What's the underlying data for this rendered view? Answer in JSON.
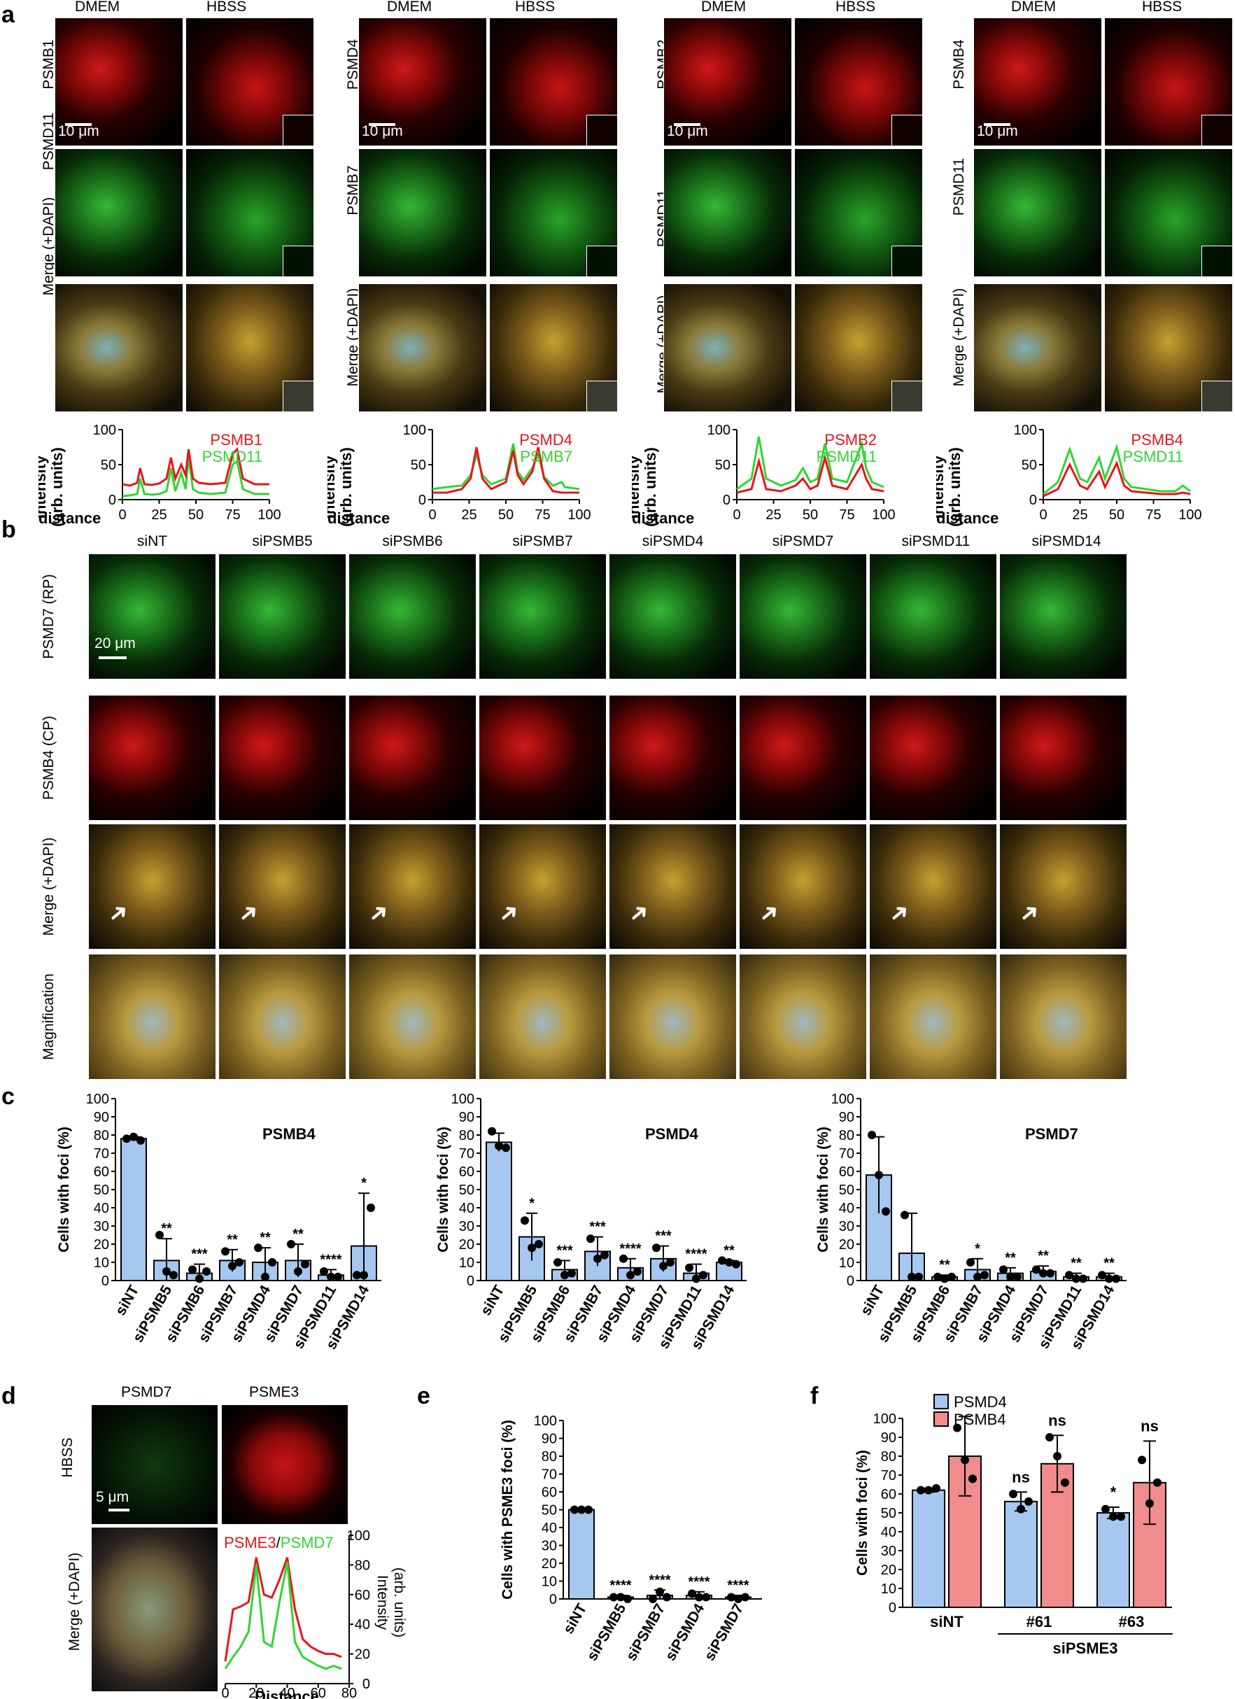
{
  "panel_letters": {
    "a": "a",
    "b": "b",
    "c": "c",
    "d": "d",
    "e": "e",
    "f": "f"
  },
  "panel_a": {
    "col_dmem": "DMEM",
    "col_hbss": "HBSS",
    "merge_label": "Merge (+DAPI)",
    "scale": "10 μm",
    "groups": [
      {
        "top": "PSMB1",
        "mid": "PSMD11"
      },
      {
        "top": "PSMD4",
        "mid": "PSMB7"
      },
      {
        "top": "PSMB2",
        "mid": "PSMD11"
      },
      {
        "top": "PSMB4",
        "mid": "PSMD11"
      }
    ],
    "profile_ylabel_1": "Intensity",
    "profile_ylabel_2": "(arb. units)",
    "profile_xlabel": "distance"
  },
  "panel_b": {
    "columns": [
      "siNT",
      "siPSMB5",
      "siPSMB6",
      "siPSMB7",
      "siPSMD4",
      "siPSMD7",
      "siPSMD11",
      "siPSMD14"
    ],
    "rows": [
      "PSMD7 (RP)",
      "PSMB4 (CP)",
      "Merge (+DAPI)",
      "Magnification"
    ],
    "scale": "20 μm",
    "arrow_glyph": "➜"
  },
  "panel_d": {
    "col1": "PSMD7",
    "col2": "PSME3",
    "row1": "HBSS",
    "row2": "Merge (+DAPI)",
    "scale": "5 μm",
    "legend_red": "PSME3",
    "legend_sep": "/",
    "legend_green": "PSMD7",
    "ylabel_1": "Intensity",
    "ylabel_2": "(arb. units)",
    "xlabel": "Distance"
  },
  "panel_f": {
    "group_label": "siPSME3"
  },
  "chart_data": [
    {
      "type": "line",
      "panel": "a1",
      "x": [
        0,
        5,
        10,
        12,
        15,
        20,
        25,
        30,
        33,
        36,
        40,
        43,
        45,
        48,
        52,
        60,
        70,
        75,
        78,
        82,
        90,
        100
      ],
      "series": [
        {
          "name": "PSMB1",
          "color": "#e8141c",
          "values": [
            22,
            20,
            24,
            45,
            22,
            21,
            23,
            30,
            60,
            30,
            50,
            35,
            72,
            30,
            24,
            22,
            24,
            65,
            72,
            30,
            22,
            22
          ]
        },
        {
          "name": "PSMD11",
          "color": "#2fd62f",
          "values": [
            5,
            6,
            8,
            30,
            8,
            7,
            8,
            12,
            45,
            12,
            38,
            15,
            60,
            15,
            10,
            8,
            10,
            50,
            55,
            15,
            8,
            8
          ]
        }
      ],
      "ylim": [
        0,
        100
      ],
      "xlim": [
        0,
        100
      ],
      "xticks": [
        0,
        25,
        50,
        75,
        100
      ],
      "yticks": [
        0,
        50,
        100
      ]
    },
    {
      "type": "line",
      "panel": "a2",
      "x": [
        0,
        10,
        20,
        26,
        30,
        34,
        40,
        50,
        55,
        58,
        62,
        68,
        72,
        76,
        82,
        88,
        90,
        100
      ],
      "series": [
        {
          "name": "PSMD4",
          "color": "#e8141c",
          "values": [
            10,
            10,
            15,
            30,
            75,
            30,
            15,
            25,
            70,
            35,
            22,
            40,
            75,
            30,
            12,
            10,
            10,
            10
          ]
        },
        {
          "name": "PSMB7",
          "color": "#2fd62f",
          "values": [
            15,
            18,
            20,
            35,
            65,
            35,
            22,
            30,
            80,
            40,
            28,
            45,
            65,
            32,
            20,
            25,
            18,
            15
          ]
        }
      ],
      "ylim": [
        0,
        100
      ],
      "xlim": [
        0,
        100
      ],
      "xticks": [
        0,
        25,
        50,
        75,
        100
      ],
      "yticks": [
        0,
        50,
        100
      ]
    },
    {
      "type": "line",
      "panel": "a3",
      "x": [
        0,
        10,
        15,
        20,
        30,
        40,
        45,
        50,
        55,
        60,
        65,
        75,
        85,
        88,
        92,
        100
      ],
      "series": [
        {
          "name": "PSMB2",
          "color": "#e8141c",
          "values": [
            10,
            15,
            55,
            15,
            12,
            20,
            30,
            15,
            20,
            60,
            20,
            15,
            50,
            30,
            15,
            12
          ]
        },
        {
          "name": "PSMD11",
          "color": "#2fd62f",
          "values": [
            15,
            30,
            90,
            30,
            20,
            28,
            45,
            25,
            30,
            80,
            30,
            25,
            80,
            45,
            25,
            18
          ]
        }
      ],
      "ylim": [
        0,
        100
      ],
      "xlim": [
        0,
        100
      ],
      "xticks": [
        0,
        25,
        50,
        75,
        100
      ],
      "yticks": [
        0,
        50,
        100
      ]
    },
    {
      "type": "line",
      "panel": "a4",
      "x": [
        0,
        10,
        18,
        25,
        30,
        38,
        42,
        50,
        55,
        60,
        70,
        80,
        90,
        95,
        100
      ],
      "series": [
        {
          "name": "PSMB4",
          "color": "#e8141c",
          "values": [
            5,
            15,
            50,
            20,
            15,
            40,
            18,
            52,
            20,
            12,
            10,
            8,
            8,
            10,
            8
          ]
        },
        {
          "name": "PSMD11",
          "color": "#2fd62f",
          "values": [
            8,
            25,
            72,
            30,
            25,
            60,
            30,
            75,
            30,
            18,
            15,
            12,
            12,
            20,
            12
          ]
        }
      ],
      "ylim": [
        0,
        100
      ],
      "xlim": [
        0,
        100
      ],
      "xticks": [
        0,
        25,
        50,
        75,
        100
      ],
      "yticks": [
        0,
        50,
        100
      ]
    },
    {
      "type": "bar",
      "panel": "c1",
      "title": "PSMB4",
      "ylabel": "Cells with foci (%)",
      "ylim": [
        0,
        100
      ],
      "yticks": [
        0,
        10,
        20,
        30,
        40,
        50,
        60,
        70,
        80,
        90,
        100
      ],
      "categories": [
        "siNT",
        "siPSMB5",
        "siPSMB6",
        "siPSMB7",
        "siPSMD4",
        "siPSMD7",
        "siPSMD11",
        "siPSMD14"
      ],
      "values": [
        78,
        11,
        4,
        11,
        10,
        11,
        3,
        19
      ],
      "errors": [
        1,
        12,
        5,
        6,
        8,
        9,
        3,
        29
      ],
      "points": [
        [
          78,
          79,
          77
        ],
        [
          25,
          5,
          3
        ],
        [
          6,
          1,
          5
        ],
        [
          16,
          8,
          10
        ],
        [
          18,
          2,
          10
        ],
        [
          20,
          5,
          9
        ],
        [
          5,
          2,
          2
        ],
        [
          3,
          3,
          40
        ]
      ],
      "significance": [
        "",
        "**",
        "***",
        "**",
        "**",
        "**",
        "****",
        "*"
      ]
    },
    {
      "type": "bar",
      "panel": "c2",
      "title": "PSMD4",
      "ylabel": "Cells with  foci (%)",
      "ylim": [
        0,
        100
      ],
      "yticks": [
        0,
        10,
        20,
        30,
        40,
        50,
        60,
        70,
        80,
        90,
        100
      ],
      "categories": [
        "siNT",
        "siPSMB5",
        "siPSMB6",
        "siPSMB7",
        "siPSMD4",
        "siPSMD7",
        "siPSMD11",
        "siPSMD14"
      ],
      "values": [
        76,
        24,
        6,
        16,
        7,
        12,
        4,
        10
      ],
      "errors": [
        5,
        13,
        5,
        8,
        5,
        7,
        5,
        1
      ],
      "points": [
        [
          82,
          74,
          73
        ],
        [
          33,
          18,
          20
        ],
        [
          10,
          3,
          4
        ],
        [
          23,
          12,
          14
        ],
        [
          12,
          3,
          5
        ],
        [
          18,
          8,
          10
        ],
        [
          7,
          1,
          3
        ],
        [
          11,
          10,
          9
        ]
      ],
      "significance": [
        "",
        "*",
        "***",
        "***",
        "****",
        "***",
        "****",
        "**"
      ]
    },
    {
      "type": "bar",
      "panel": "c3",
      "title": "PSMD7",
      "ylabel": "Cells with foci (%)",
      "ylim": [
        0,
        100
      ],
      "yticks": [
        0,
        10,
        20,
        30,
        40,
        50,
        60,
        70,
        80,
        90,
        100
      ],
      "categories": [
        "siNT",
        "siPSMB5",
        "siPSMB6",
        "siPSMB7",
        "siPSMD4",
        "siPSMD7",
        "siPSMD11",
        "siPSMD14"
      ],
      "values": [
        58,
        15,
        2,
        6,
        4,
        5,
        2,
        2
      ],
      "errors": [
        21,
        22,
        1,
        6,
        3,
        3,
        2,
        2
      ],
      "points": [
        [
          80,
          58,
          38
        ],
        [
          36,
          2,
          2
        ],
        [
          2,
          1,
          2
        ],
        [
          10,
          2,
          3
        ],
        [
          6,
          2,
          2
        ],
        [
          6,
          4,
          4
        ],
        [
          3,
          1,
          1
        ],
        [
          3,
          1,
          1
        ]
      ],
      "significance": [
        "",
        "",
        "**",
        "*",
        "**",
        "**",
        "**",
        "**"
      ]
    },
    {
      "type": "line",
      "panel": "d",
      "x": [
        0,
        5,
        10,
        15,
        20,
        25,
        30,
        35,
        40,
        45,
        50,
        55,
        60,
        65,
        70,
        75
      ],
      "series": [
        {
          "name": "PSME3",
          "color": "#e8141c",
          "values": [
            15,
            50,
            52,
            55,
            85,
            60,
            58,
            70,
            85,
            50,
            30,
            25,
            22,
            20,
            20,
            18
          ]
        },
        {
          "name": "PSMD7",
          "color": "#2fd62f",
          "values": [
            10,
            18,
            25,
            35,
            80,
            28,
            25,
            55,
            82,
            28,
            18,
            15,
            12,
            10,
            12,
            10
          ]
        }
      ],
      "ylim": [
        0,
        100
      ],
      "xlim": [
        0,
        80
      ],
      "xticks": [
        0,
        20,
        40,
        60,
        80
      ],
      "yticks": [
        0,
        20,
        40,
        60,
        80,
        100
      ],
      "xlabel": "Distance",
      "ylabel": "Intensity (arb. units)"
    },
    {
      "type": "bar",
      "panel": "e",
      "ylabel": "Cells with  PSME3 foci (%)",
      "ylim": [
        0,
        100
      ],
      "yticks": [
        0,
        10,
        20,
        30,
        40,
        50,
        60,
        70,
        80,
        90,
        100
      ],
      "categories": [
        "siNT",
        "siPSMB5",
        "siPSMB7",
        "siPSMD4",
        "siPSMD7"
      ],
      "values": [
        50,
        1,
        2,
        2,
        1
      ],
      "errors": [
        0.5,
        1,
        3,
        2,
        1
      ],
      "points": [
        [
          50,
          50,
          50
        ],
        [
          1,
          1,
          0
        ],
        [
          0,
          4,
          1
        ],
        [
          3,
          1,
          1
        ],
        [
          1,
          0,
          1
        ]
      ],
      "significance": [
        "",
        "****",
        "****",
        "****",
        "****"
      ]
    },
    {
      "type": "bar",
      "panel": "f",
      "ylabel": "Cells with foci (%)",
      "ylim": [
        0,
        100
      ],
      "yticks": [
        0,
        10,
        20,
        30,
        40,
        50,
        60,
        70,
        80,
        90,
        100
      ],
      "categories": [
        "siNT",
        "#61",
        "#63"
      ],
      "series": [
        {
          "name": "PSMD4",
          "color": "#a6c8f0",
          "values": [
            62,
            56,
            50
          ],
          "errors": [
            1,
            5,
            3
          ],
          "points": [
            [
              62,
              62,
              63
            ],
            [
              60,
              52,
              56
            ],
            [
              52,
              48,
              48
            ]
          ]
        },
        {
          "name": "PSMB4",
          "color": "#f08c8c",
          "values": [
            80,
            76,
            66
          ],
          "errors": [
            21,
            15,
            22
          ],
          "points": [
            [
              95,
              78,
              68
            ],
            [
              90,
              80,
              66
            ],
            [
              78,
              55,
              66
            ]
          ]
        }
      ],
      "significance_psmd4": [
        "",
        "ns",
        "*"
      ],
      "significance_psmb4": [
        "",
        "ns",
        "ns"
      ]
    }
  ]
}
